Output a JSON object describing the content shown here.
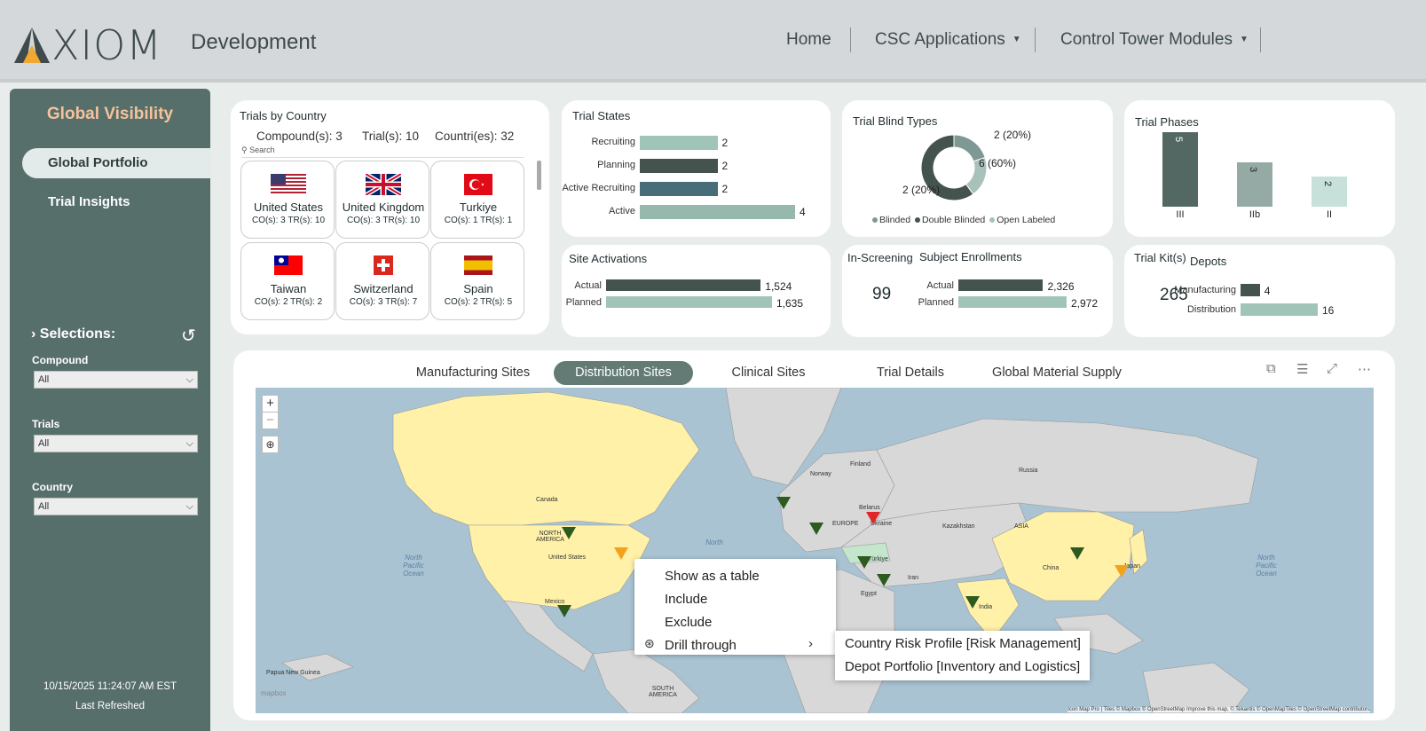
{
  "header": {
    "logo_text": "XIOM",
    "environment": "Development",
    "nav": [
      "Home",
      "CSC Applications",
      "Control Tower Modules"
    ]
  },
  "sidebar": {
    "title": "Global Visibility",
    "items": [
      {
        "label": "Global Portfolio",
        "active": true
      },
      {
        "label": "Trial Insights",
        "active": false
      }
    ],
    "selections_label": "Selections:",
    "filters": [
      {
        "label": "Compound",
        "value": "All"
      },
      {
        "label": "Trials",
        "value": "All"
      },
      {
        "label": "Country",
        "value": "All"
      }
    ],
    "refresh_time": "10/15/2025 11:24:07 AM EST",
    "refresh_label": "Last Refreshed"
  },
  "trials_by_country": {
    "title": "Trials by Country",
    "compounds": "Compound(s): 3",
    "trials": "Trial(s): 10",
    "countries": "Countri(es): 32",
    "search_placeholder": "Search",
    "cards": [
      {
        "name": "United States",
        "stats": "CO(s): 3   TR(s): 10"
      },
      {
        "name": "United Kingdom",
        "stats": "CO(s): 3   TR(s): 10"
      },
      {
        "name": "Turkiye",
        "stats": "CO(s): 1   TR(s): 1"
      },
      {
        "name": "Taiwan",
        "stats": "CO(s): 2   TR(s): 2"
      },
      {
        "name": "Switzerland",
        "stats": "CO(s): 3   TR(s): 7"
      },
      {
        "name": "Spain",
        "stats": "CO(s): 2   TR(s): 5"
      }
    ]
  },
  "trial_states": {
    "title": "Trial States",
    "chart_data": {
      "type": "bar",
      "categories": [
        "Recruiting",
        "Planning",
        "Active Recruiting",
        "Active"
      ],
      "values": [
        2,
        2,
        2,
        4
      ],
      "colors": [
        "#a1c4b8",
        "#45534f",
        "#466d78",
        "#97b9ad"
      ]
    }
  },
  "trial_blind_types": {
    "title": "Trial Blind Types",
    "chart_data": {
      "type": "pie",
      "categories": [
        "Blinded",
        "Double Blinded",
        "Open Labeled"
      ],
      "values": [
        2,
        6,
        2
      ],
      "labels": [
        "2 (20%)",
        "6 (60%)",
        "2 (20%)"
      ],
      "colors": [
        "#7e9893",
        "#45534f",
        "#a9c1bb"
      ]
    }
  },
  "trial_phases": {
    "title": "Trial Phases",
    "chart_data": {
      "type": "bar",
      "categories": [
        "III",
        "IIb",
        "II"
      ],
      "values": [
        5,
        3,
        2
      ],
      "colors": [
        "#536863",
        "#95aaa4",
        "#c8e0da"
      ]
    }
  },
  "site_activations": {
    "title": "Site Activations",
    "chart_data": {
      "type": "bar",
      "categories": [
        "Actual",
        "Planned"
      ],
      "values": [
        1524,
        1635
      ],
      "labels": [
        "1,524",
        "1,635"
      ],
      "colors": [
        "#45534f",
        "#a1c4b8"
      ]
    }
  },
  "in_screening": {
    "title": "In-Screening",
    "value": "99"
  },
  "subject_enrollments": {
    "title": "Subject Enrollments",
    "chart_data": {
      "type": "bar",
      "categories": [
        "Actual",
        "Planned"
      ],
      "values": [
        2326,
        2972
      ],
      "labels": [
        "2,326",
        "2,972"
      ],
      "colors": [
        "#45534f",
        "#a1c4b8"
      ]
    }
  },
  "trial_kits": {
    "title": "Trial Kit(s)",
    "value": "265"
  },
  "depots": {
    "title": "Depots",
    "chart_data": {
      "type": "bar",
      "categories": [
        "Manufacturing",
        "Distribution"
      ],
      "values": [
        4,
        16
      ],
      "colors": [
        "#45534f",
        "#a1c4b8"
      ]
    }
  },
  "map_section": {
    "tabs": [
      {
        "label": "Manufacturing Sites",
        "active": false
      },
      {
        "label": "Distribution Sites",
        "active": true
      },
      {
        "label": "Clinical Sites",
        "active": false
      },
      {
        "label": "Trial Details",
        "active": false
      },
      {
        "label": "Global Material Supply",
        "active": false
      }
    ],
    "labels": {
      "canada": "Canada",
      "north_america": "NORTH AMERICA",
      "united_states": "United States",
      "mexico": "Mexico",
      "russia": "Russia",
      "asia": "ASIA",
      "china": "China",
      "india": "India",
      "kazakhstan": "Kazakhstan",
      "europe": "EUROPE",
      "turkiye": "Türkiye",
      "iran": "Iran",
      "egypt": "Egypt",
      "south_america": "SOUTH AMERICA",
      "papua": "Papua New Guinea",
      "japan": "Japan",
      "finland": "Finland",
      "norway": "Norway",
      "belarus": "Belarus",
      "ukraine": "Ukraine"
    },
    "oceans": [
      "North Pacific Ocean",
      "North Pacific Ocean",
      "North"
    ],
    "attribution": "Icon Map Pro | Tiles © Mapbox © OpenStreetMap Improve this map, © Tekantis © OpenMapTiles © OpenStreetMap contributors",
    "mapbox_logo": "mapbox"
  },
  "context_menu": {
    "items": [
      "Show as a table",
      "Include",
      "Exclude",
      "Drill through"
    ],
    "submenu": [
      "Country Risk Profile [Risk Management]",
      "Depot Portfolio [Inventory and Logistics]"
    ]
  }
}
